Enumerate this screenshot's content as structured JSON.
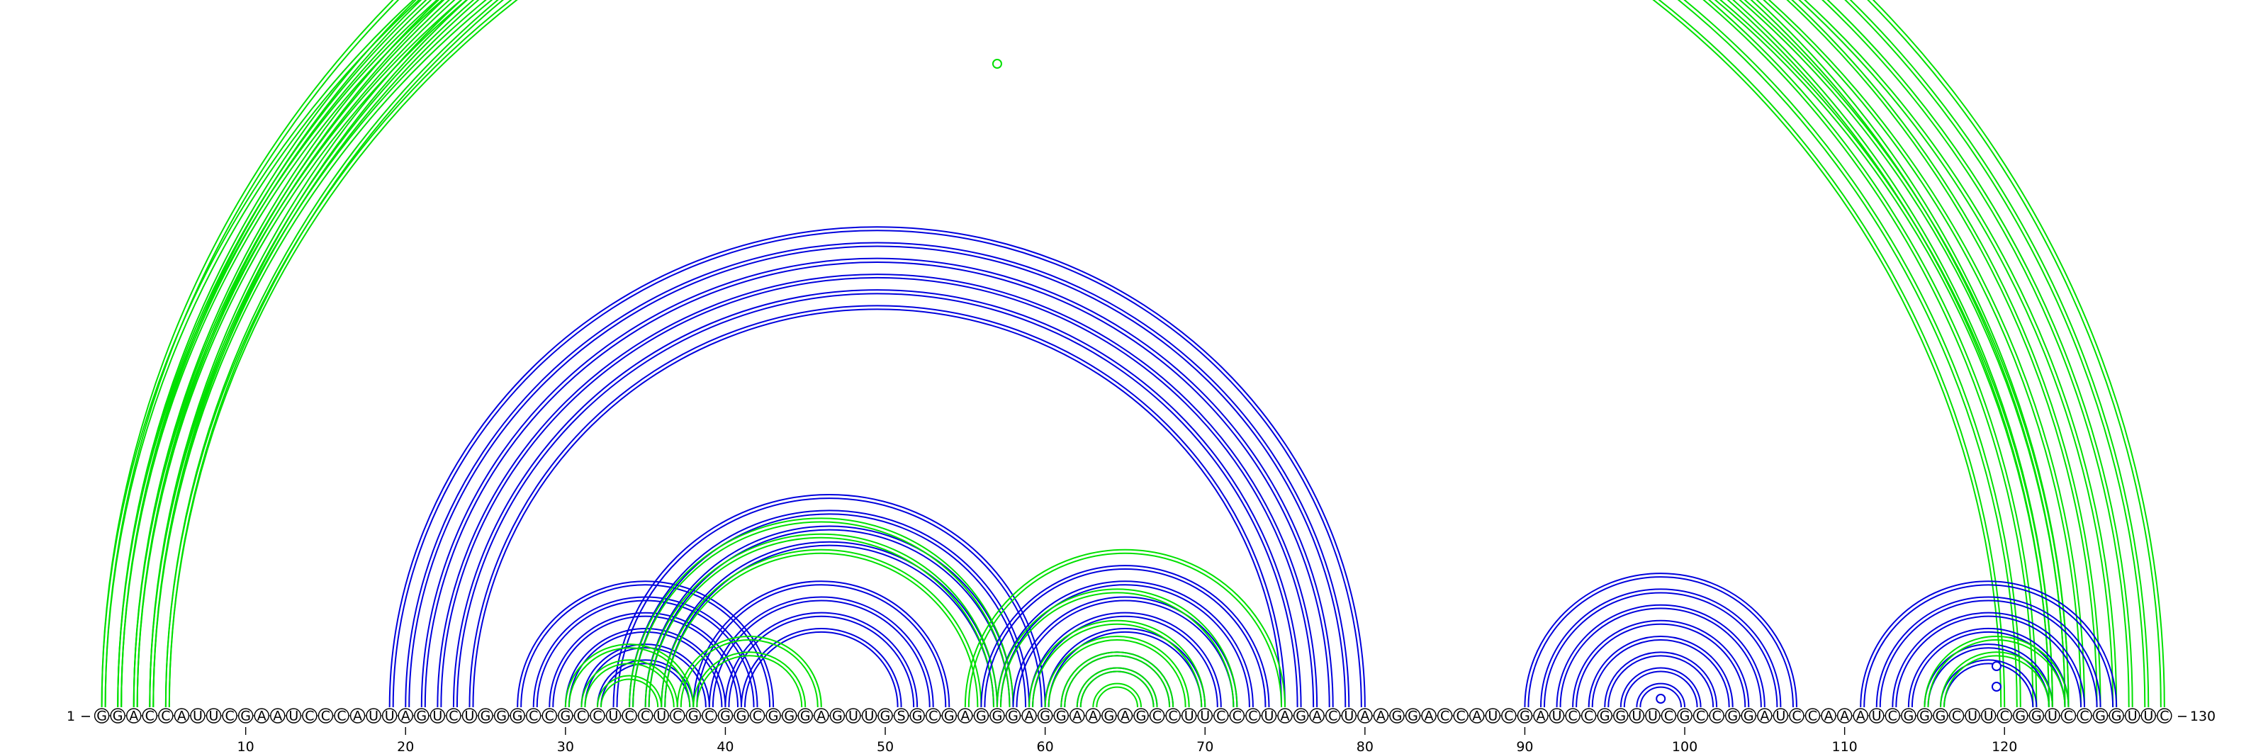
{
  "diagram": {
    "sequence": "GGACCAUUCGAAUCCCAUUAGUCUGGGCCGCCUCCUCGCGGCGGGAGUUGSGCGAGGGAGGAAGAGCCUUCCCUAGACUAAGGACCAUCGAUCCGGUUCGCCGGAUCCAAAUCGGGCUUCGGUCCGGUUC",
    "start_label": "1",
    "end_label": "130",
    "ticks": [
      {
        "pos": 10,
        "label": "10"
      },
      {
        "pos": 20,
        "label": "20"
      },
      {
        "pos": 30,
        "label": "30"
      },
      {
        "pos": 40,
        "label": "40"
      },
      {
        "pos": 50,
        "label": "50"
      },
      {
        "pos": 60,
        "label": "60"
      },
      {
        "pos": 70,
        "label": "70"
      },
      {
        "pos": 80,
        "label": "80"
      },
      {
        "pos": 90,
        "label": "90"
      },
      {
        "pos": 100,
        "label": "100"
      },
      {
        "pos": 110,
        "label": "110"
      },
      {
        "pos": 120,
        "label": "120"
      }
    ],
    "colors": {
      "structure_a": "#0000dd",
      "structure_b": "#00e000",
      "backbone": "#000000"
    },
    "arc_groups": [
      {
        "color": "structure_b",
        "pairs": [
          [
            1,
            130
          ],
          [
            2,
            129
          ]
        ]
      },
      {
        "color": "structure_b",
        "pairs": [
          [
            1,
            124
          ],
          [
            2,
            123
          ],
          [
            3,
            122
          ],
          [
            4,
            121
          ],
          [
            5,
            120
          ]
        ]
      },
      {
        "color": "structure_b",
        "pairs": [
          [
            2,
            126
          ],
          [
            3,
            125
          ],
          [
            4,
            124
          ],
          [
            5,
            123
          ]
        ]
      },
      {
        "color": "structure_b",
        "pairs": [
          [
            3,
            128
          ],
          [
            4,
            127
          ]
        ]
      },
      {
        "color": "structure_a",
        "pairs": [
          [
            19,
            80
          ],
          [
            20,
            79
          ],
          [
            21,
            78
          ],
          [
            22,
            77
          ],
          [
            23,
            76
          ],
          [
            24,
            75
          ]
        ]
      },
      {
        "color": "structure_a",
        "pairs": [
          [
            27,
            43
          ],
          [
            28,
            42
          ],
          [
            29,
            41
          ],
          [
            30,
            40
          ],
          [
            31,
            39
          ],
          [
            32,
            38
          ]
        ]
      },
      {
        "color": "structure_a",
        "pairs": [
          [
            33,
            60
          ],
          [
            34,
            59
          ],
          [
            35,
            58
          ],
          [
            36,
            57
          ]
        ]
      },
      {
        "color": "structure_a",
        "pairs": [
          [
            38,
            54
          ],
          [
            39,
            53
          ],
          [
            40,
            52
          ],
          [
            41,
            51
          ]
        ]
      },
      {
        "color": "structure_b",
        "pairs": [
          [
            30,
            38
          ],
          [
            31,
            37
          ],
          [
            32,
            36
          ]
        ]
      },
      {
        "color": "structure_b",
        "pairs": [
          [
            34,
            58
          ],
          [
            35,
            57
          ],
          [
            36,
            56
          ]
        ]
      },
      {
        "color": "structure_b",
        "pairs": [
          [
            37,
            46
          ],
          [
            38,
            45
          ]
        ]
      },
      {
        "color": "structure_a",
        "pairs": [
          [
            56,
            74
          ],
          [
            57,
            73
          ],
          [
            58,
            72
          ],
          [
            59,
            71
          ],
          [
            60,
            70
          ]
        ]
      },
      {
        "color": "structure_a",
        "pairs": [
          [
            61,
            68
          ],
          [
            62,
            67
          ]
        ]
      },
      {
        "color": "structure_b",
        "pairs": [
          [
            55,
            75
          ],
          [
            57,
            72
          ],
          [
            59,
            70
          ],
          [
            60,
            69
          ],
          [
            61,
            68
          ],
          [
            62,
            67
          ],
          [
            63,
            66
          ]
        ]
      },
      {
        "color": "structure_a",
        "pairs": [
          [
            90,
            107
          ],
          [
            91,
            106
          ],
          [
            92,
            105
          ],
          [
            93,
            104
          ],
          [
            94,
            103
          ],
          [
            95,
            102
          ],
          [
            96,
            101
          ],
          [
            97,
            100
          ]
        ]
      },
      {
        "color": "structure_a",
        "pairs": [
          [
            111,
            127
          ],
          [
            112,
            126
          ],
          [
            113,
            125
          ],
          [
            114,
            124
          ],
          [
            115,
            123
          ],
          [
            116,
            122
          ]
        ]
      },
      {
        "color": "structure_b",
        "pairs": [
          [
            115,
            124
          ],
          [
            116,
            123
          ]
        ]
      }
    ],
    "loops": [
      {
        "center": 57.0,
        "offset": 908,
        "color": "structure_b"
      },
      {
        "center": 98.5,
        "offset": 12,
        "color": "structure_a"
      },
      {
        "center": 119.5,
        "offset": 58,
        "color": "structure_a"
      },
      {
        "center": 119.5,
        "offset": 29,
        "color": "structure_a"
      }
    ]
  }
}
